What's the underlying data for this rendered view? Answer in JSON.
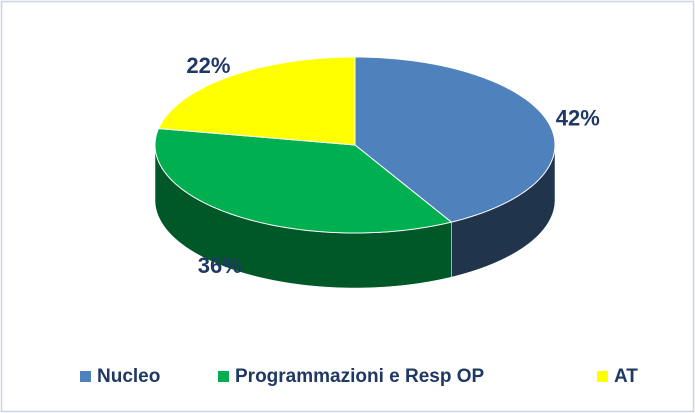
{
  "chart_data": {
    "type": "pie",
    "categories": [
      "Nucleo",
      "Programmazioni e Resp OP",
      "AT"
    ],
    "values": [
      42,
      36,
      22
    ],
    "value_labels": [
      "42%",
      "36%",
      "22%"
    ],
    "colors": [
      "#4f81bd",
      "#00b050",
      "#ffff00"
    ],
    "legend": "bottom"
  }
}
